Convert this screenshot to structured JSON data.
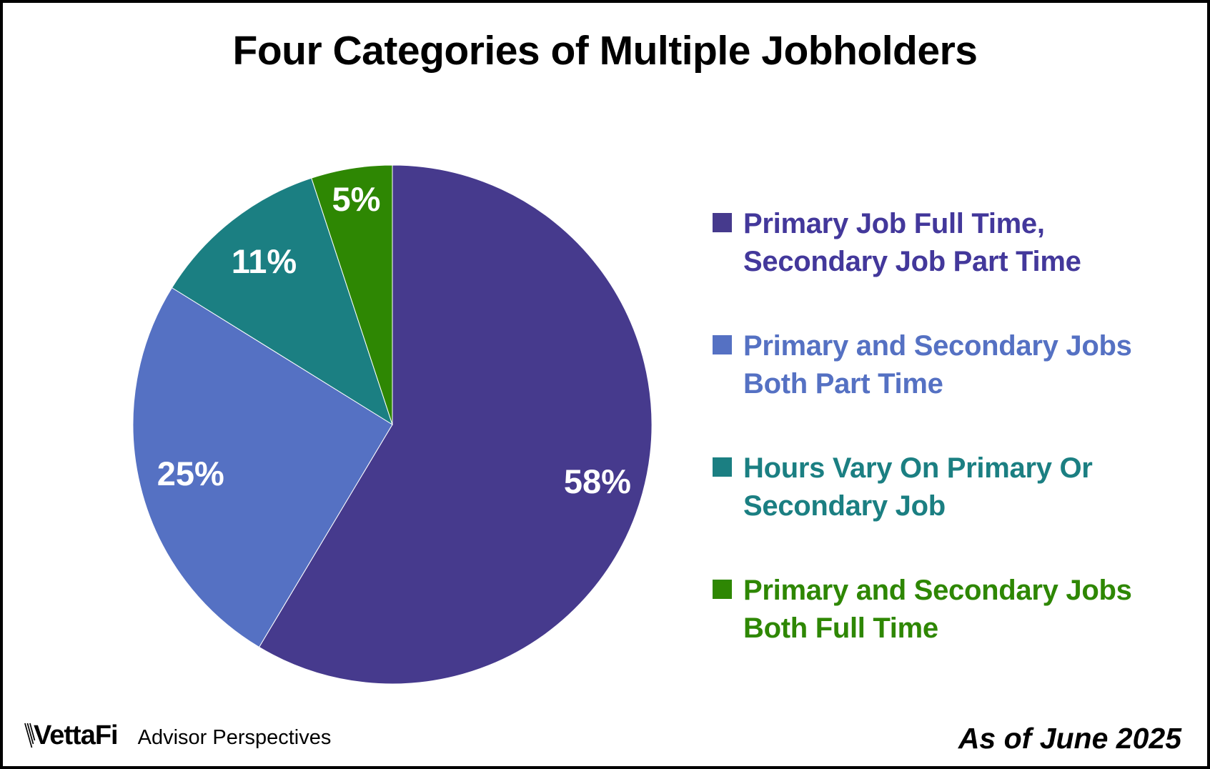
{
  "title": "Four Categories of Multiple Jobholders",
  "chart_data": {
    "type": "pie",
    "title": "Four Categories of Multiple Jobholders",
    "start_angle_deg": -90,
    "direction": "clockwise",
    "legend_position": "right",
    "data_label_color": "#FFFFFF",
    "slices": [
      {
        "label": "Primary Job Full Time, Secondary Job Part Time",
        "value": 58,
        "display": "58%",
        "color": "#463A8D"
      },
      {
        "label": "Primary and Secondary Jobs Both Part Time",
        "value": 25,
        "display": "25%",
        "color": "#5571C3"
      },
      {
        "label": "Hours Vary On Primary Or Secondary Job",
        "value": 11,
        "display": "11%",
        "color": "#1B7F82"
      },
      {
        "label": "Primary and Secondary Jobs Both Full Time",
        "value": 5,
        "display": "5%",
        "color": "#2E8703"
      }
    ]
  },
  "legend": {
    "items": [
      {
        "line1": "Primary Job Full Time,",
        "line2": "Secondary Job Part Time",
        "swatch_color": "#463A8D",
        "text_color": "#43389B"
      },
      {
        "line1": "Primary and Secondary Jobs",
        "line2": "Both Part Time",
        "swatch_color": "#5571C3",
        "text_color": "#5571C3"
      },
      {
        "line1": "Hours Vary On Primary Or",
        "line2": "Secondary Job",
        "swatch_color": "#1B7F82",
        "text_color": "#1B7F82"
      },
      {
        "line1": "Primary and Secondary Jobs",
        "line2": "Both Full Time",
        "swatch_color": "#2E8703",
        "text_color": "#2E8703"
      }
    ]
  },
  "footer": {
    "brand": "VettaFi",
    "brand_sub": "Advisor Perspectives",
    "as_of": "As of June 2025"
  }
}
